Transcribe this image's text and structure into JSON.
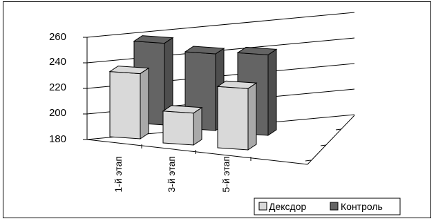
{
  "chart_data": {
    "type": "bar",
    "subtype": "3d-clustered-column",
    "categories": [
      "1-й этап",
      "3-й этап",
      "5-й этап"
    ],
    "series": [
      {
        "name": "Дексдор",
        "values": [
          231,
          205,
          228
        ],
        "color": "#d9d9d9"
      },
      {
        "name": "Контроль",
        "values": [
          244,
          240,
          243
        ],
        "color": "#646464"
      }
    ],
    "y_ticks": [
      "180",
      "200",
      "220",
      "240",
      "260"
    ],
    "ylim": [
      180,
      260
    ],
    "grid": true,
    "legend_position": "bottom-right"
  }
}
